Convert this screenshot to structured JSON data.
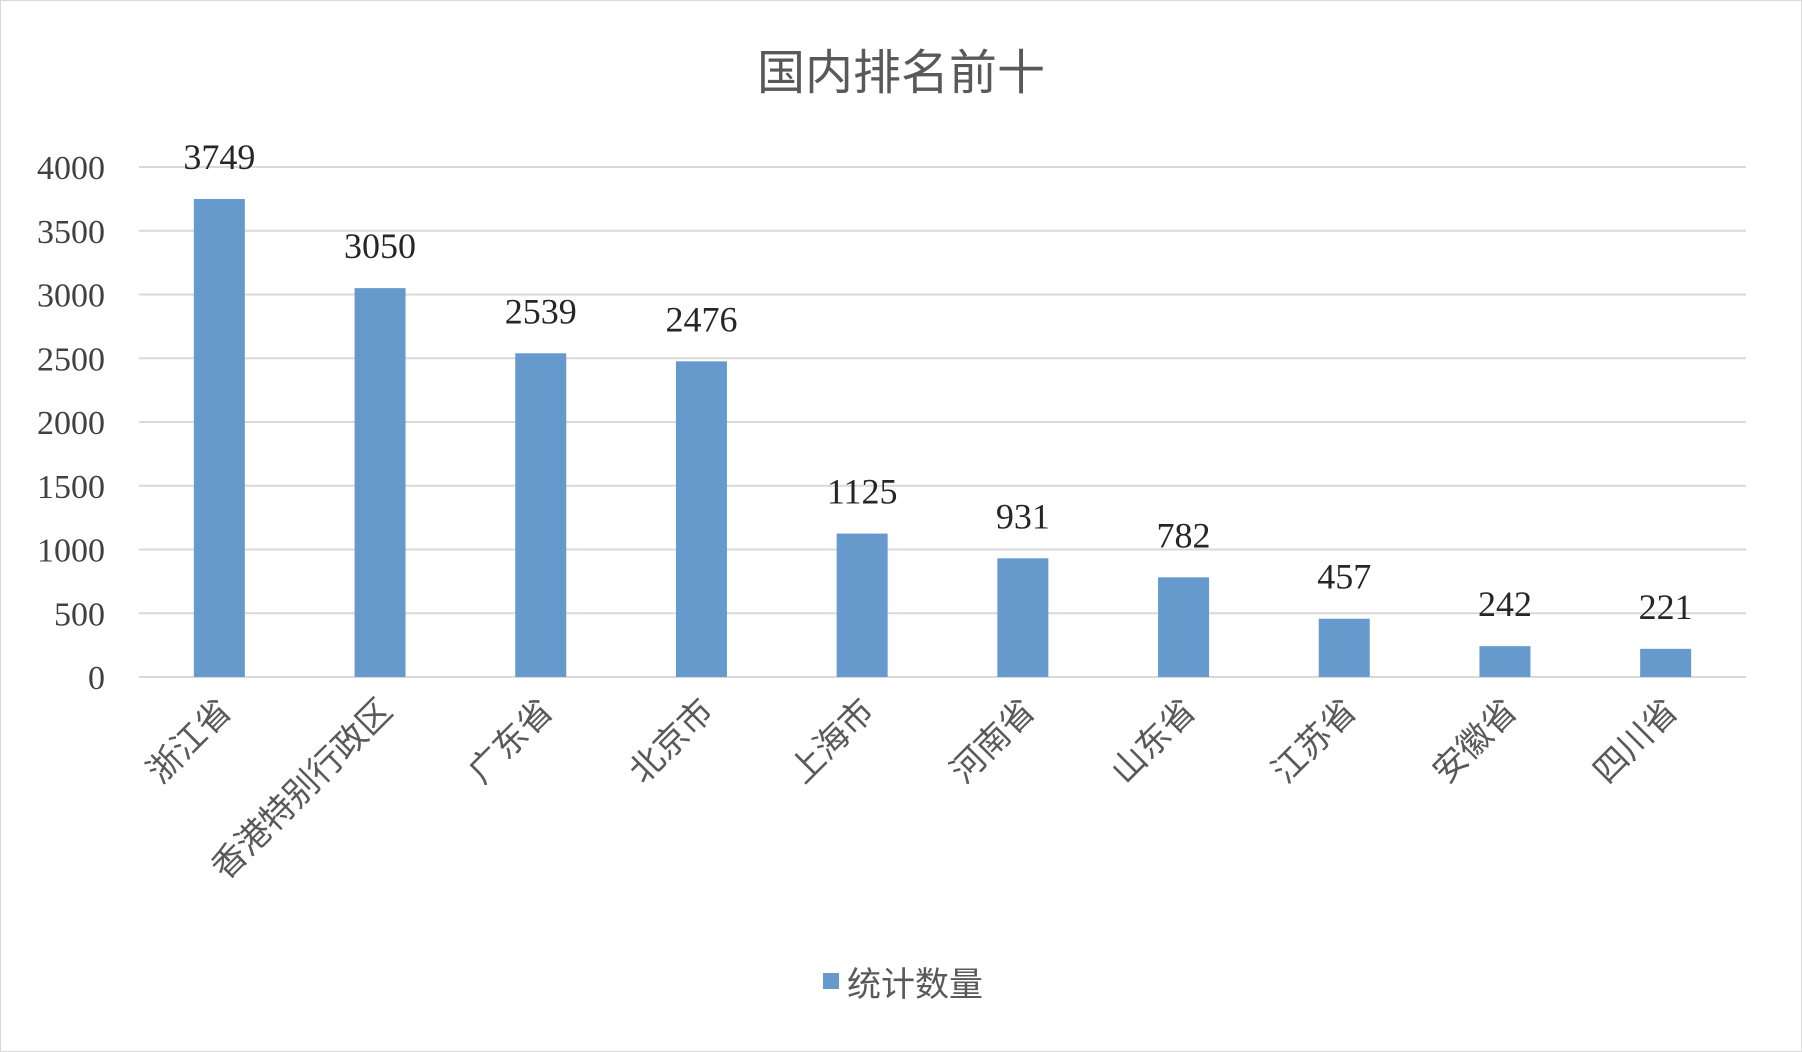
{
  "chart_data": {
    "type": "bar",
    "title": "国内排名前十",
    "categories": [
      "浙江省",
      "香港特别行政区",
      "广东省",
      "北京市",
      "上海市",
      "河南省",
      "山东省",
      "江苏省",
      "安徽省",
      "四川省"
    ],
    "series": [
      {
        "name": "统计数量",
        "values": [
          3749,
          3050,
          2539,
          2476,
          1125,
          931,
          782,
          457,
          242,
          221
        ],
        "color": "#6699cc"
      }
    ],
    "ylim": [
      0,
      4000
    ],
    "yticks": [
      0,
      500,
      1000,
      1500,
      2000,
      2500,
      3000,
      3500,
      4000
    ],
    "grid": true,
    "legend_position": "bottom",
    "gridline_color": "#d9d9d9"
  }
}
